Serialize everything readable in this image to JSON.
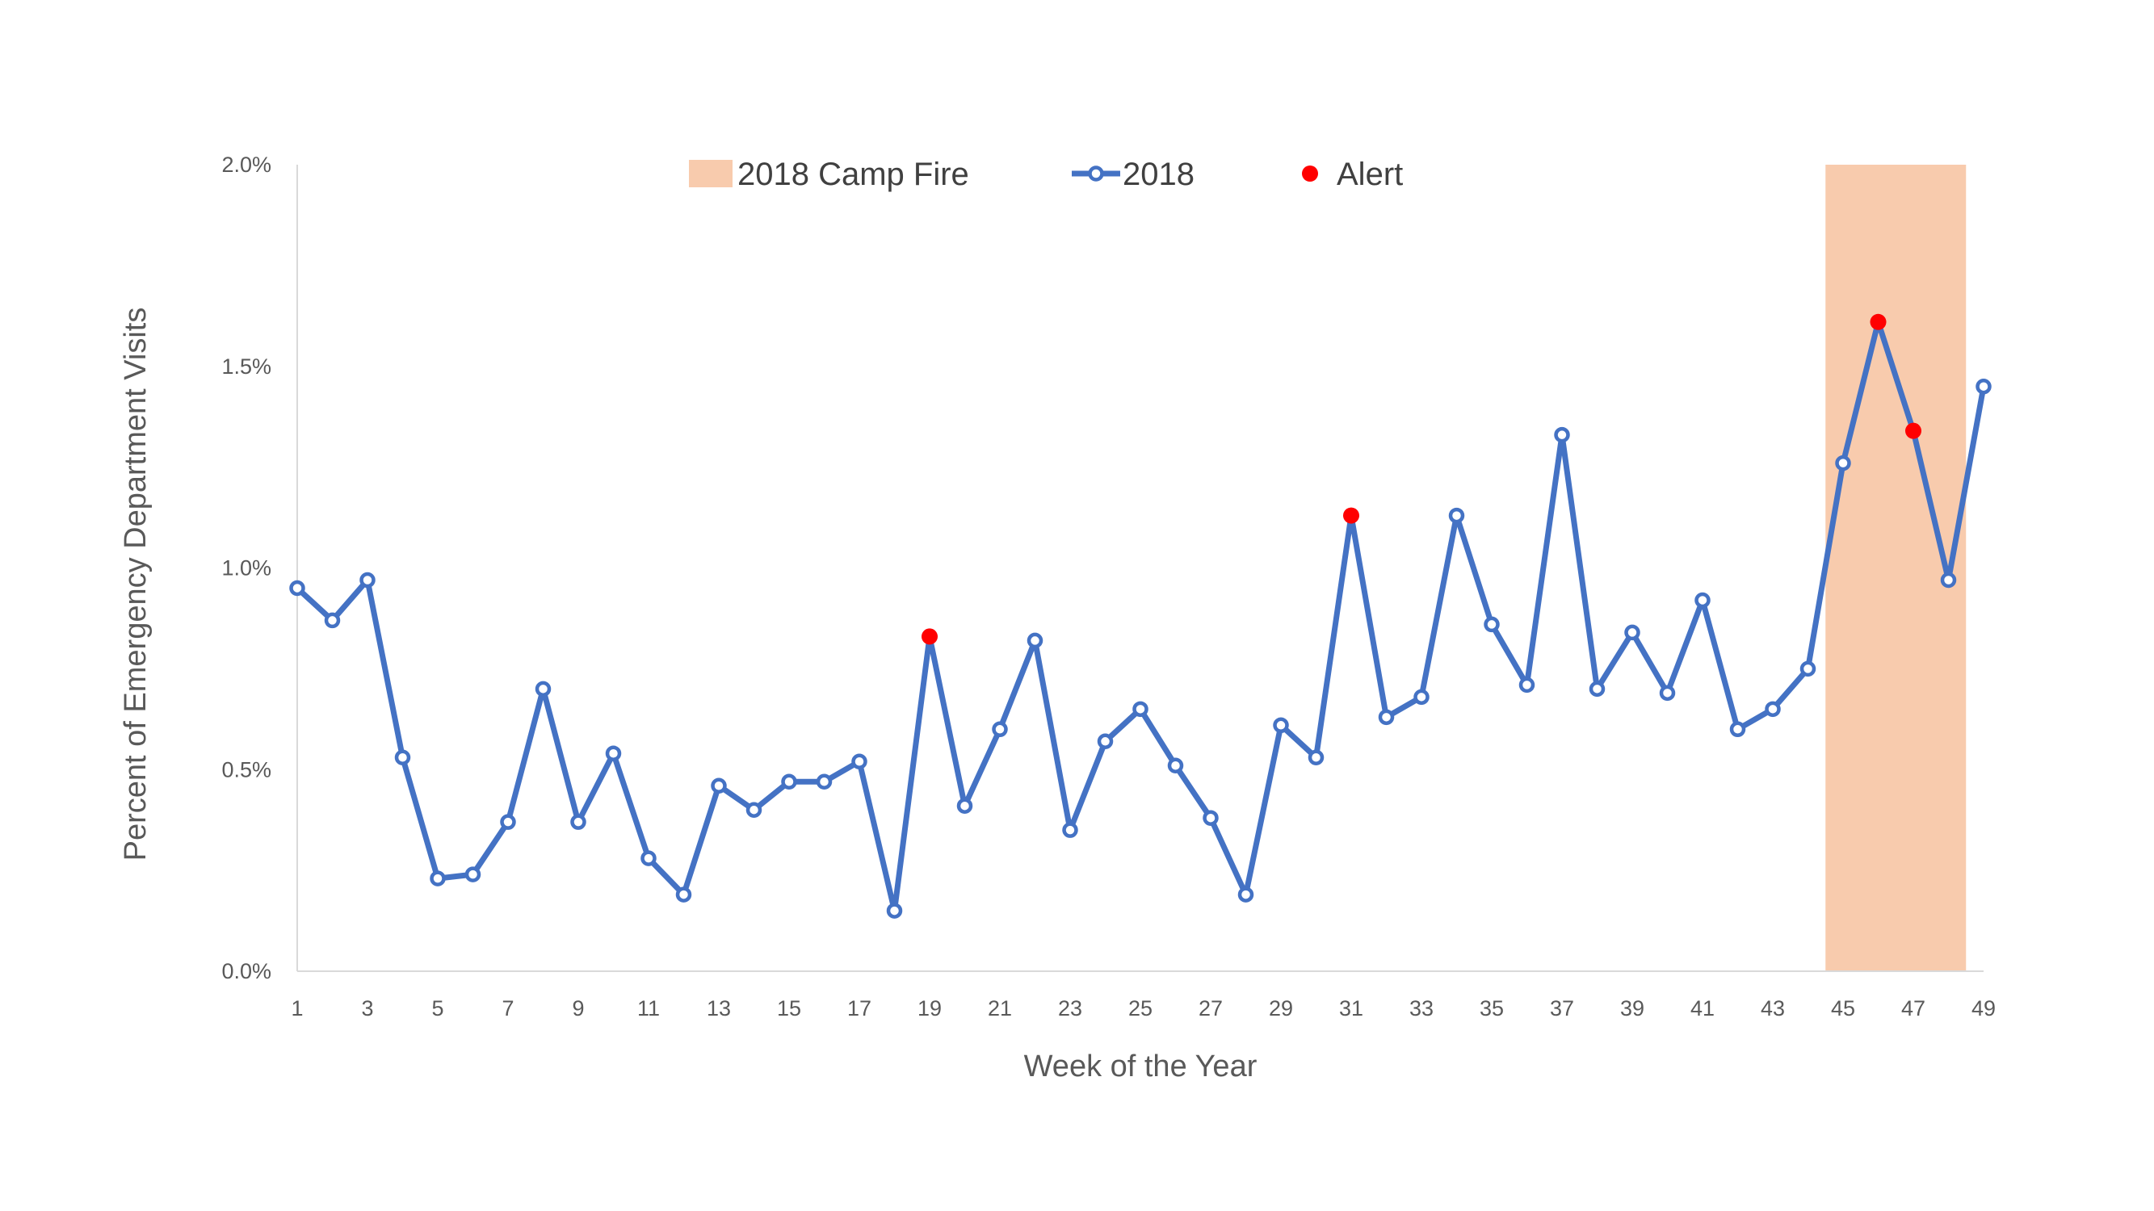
{
  "chart_data": {
    "type": "line",
    "title": "",
    "xlabel": "Week of the Year",
    "ylabel": "Percent of Emergency Department Visits",
    "x": [
      1,
      2,
      3,
      4,
      5,
      6,
      7,
      8,
      9,
      10,
      11,
      12,
      13,
      14,
      15,
      16,
      17,
      18,
      19,
      20,
      21,
      22,
      23,
      24,
      25,
      26,
      27,
      28,
      29,
      30,
      31,
      32,
      33,
      34,
      35,
      36,
      37,
      38,
      39,
      40,
      41,
      42,
      43,
      44,
      45,
      46,
      47,
      48,
      49
    ],
    "x_tick_labels": [
      "1",
      "3",
      "5",
      "7",
      "9",
      "11",
      "13",
      "15",
      "17",
      "19",
      "21",
      "23",
      "25",
      "27",
      "29",
      "31",
      "33",
      "35",
      "37",
      "39",
      "41",
      "43",
      "45",
      "47",
      "49"
    ],
    "y_tick_labels": [
      "0.0%",
      "0.5%",
      "1.0%",
      "1.5%",
      "2.0%"
    ],
    "y_ticks": [
      0,
      0.5,
      1.0,
      1.5,
      2.0
    ],
    "ylim": [
      0,
      2.0
    ],
    "xlim": [
      1,
      49
    ],
    "series": [
      {
        "name": "2018",
        "color": "#4472C4",
        "values": [
          0.95,
          0.87,
          0.97,
          0.53,
          0.23,
          0.24,
          0.37,
          0.7,
          0.37,
          0.54,
          0.28,
          0.19,
          0.46,
          0.4,
          0.47,
          0.47,
          0.52,
          0.15,
          0.83,
          0.41,
          0.6,
          0.82,
          0.35,
          0.57,
          0.65,
          0.51,
          0.38,
          0.19,
          0.61,
          0.53,
          1.13,
          0.63,
          0.68,
          1.13,
          0.86,
          0.71,
          1.33,
          0.7,
          0.84,
          0.69,
          0.92,
          0.6,
          0.65,
          0.75,
          1.26,
          1.61,
          1.34,
          0.97,
          1.45
        ]
      }
    ],
    "alerts": {
      "name": "Alert",
      "color": "#FF0000",
      "x": [
        19,
        31,
        46,
        47
      ],
      "y": [
        0.83,
        1.13,
        1.61,
        1.34
      ]
    },
    "shaded_region": {
      "name": "2018 Camp Fire",
      "color": "#F8CBAD",
      "x_start": 44.5,
      "x_end": 48.5
    },
    "legend": {
      "position": "top-center",
      "entries": [
        "2018 Camp Fire",
        "2018",
        "Alert"
      ]
    },
    "grid": false
  }
}
